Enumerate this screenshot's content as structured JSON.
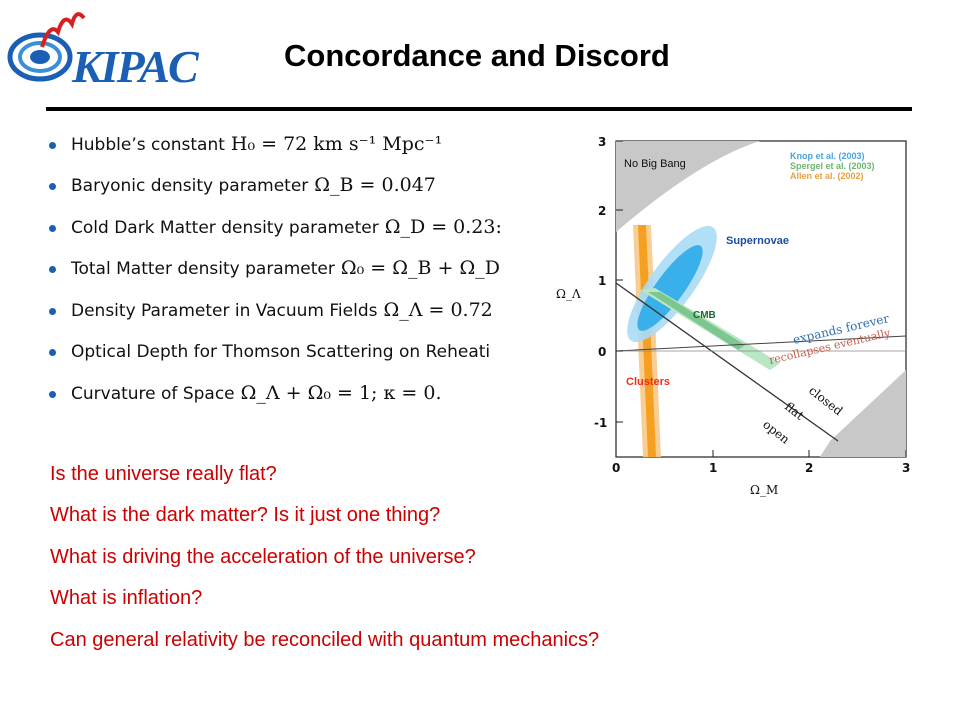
{
  "header": {
    "logo_text": "KIPAC",
    "title": "Concordance and Discord"
  },
  "bullets": [
    {
      "text": "Hubble’s constant",
      "math": "H₀ = 72 km s⁻¹ Mpc⁻¹"
    },
    {
      "text": "Baryonic density parameter",
      "math": "Ω_B = 0.047"
    },
    {
      "text": "Cold Dark Matter density parameter",
      "math": "Ω_D = 0.23:"
    },
    {
      "text": "Total Matter density parameter",
      "math": "Ω₀ = Ω_B + Ω_D"
    },
    {
      "text": "Density Parameter in Vacuum Fields",
      "math": "Ω_Λ = 0.72"
    },
    {
      "text": "Optical Depth for Thomson Scattering on Reheati",
      "math": ""
    },
    {
      "text": "Curvature of Space",
      "math": "Ω_Λ + Ω₀ = 1;  κ = 0."
    }
  ],
  "plot": {
    "xlabel": "Ω_M",
    "ylabel": "Ω_Λ",
    "x_ticks": [
      "0",
      "1",
      "2",
      "3"
    ],
    "y_ticks": [
      "3",
      "2",
      "1",
      "0",
      "-1"
    ],
    "no_big_bang_label": "No Big Bang",
    "legend": [
      {
        "label": "Knop et al. (2003)",
        "color": "#4aa3df"
      },
      {
        "label": "Spergel et al. (2003)",
        "color": "#6db56d"
      },
      {
        "label": "Allen et al. (2002)",
        "color": "#e8a040"
      }
    ],
    "region_labels": {
      "supernovae": "Supernovae",
      "cmb": "CMB",
      "clusters": "Clusters"
    },
    "line_labels": {
      "expands": "expands forever",
      "recollapses": "recollapses eventually",
      "closed": "closed",
      "flat": "flat",
      "open": "open"
    },
    "colors": {
      "supernovae": "#3ab0ea",
      "cmb": "#7cc690",
      "clusters": "#f5a020",
      "clusters_label": "#e8301a",
      "supernovae_label": "#1a4fa0",
      "cmb_label": "#1a6a2a",
      "expands": "#3070b0",
      "recollapses": "#c06050"
    }
  },
  "questions": [
    "Is the universe really flat?",
    "What is the dark matter?   Is it just one thing?",
    "What is driving the acceleration of the universe?",
    "What is inflation?",
    "Can general relativity be reconciled with quantum mechanics?"
  ],
  "colors": {
    "question_text": "#cc0000",
    "bullet_dot": "#1a5fb4",
    "logo_blue": "#1a5fb4",
    "logo_red": "#d42020"
  }
}
